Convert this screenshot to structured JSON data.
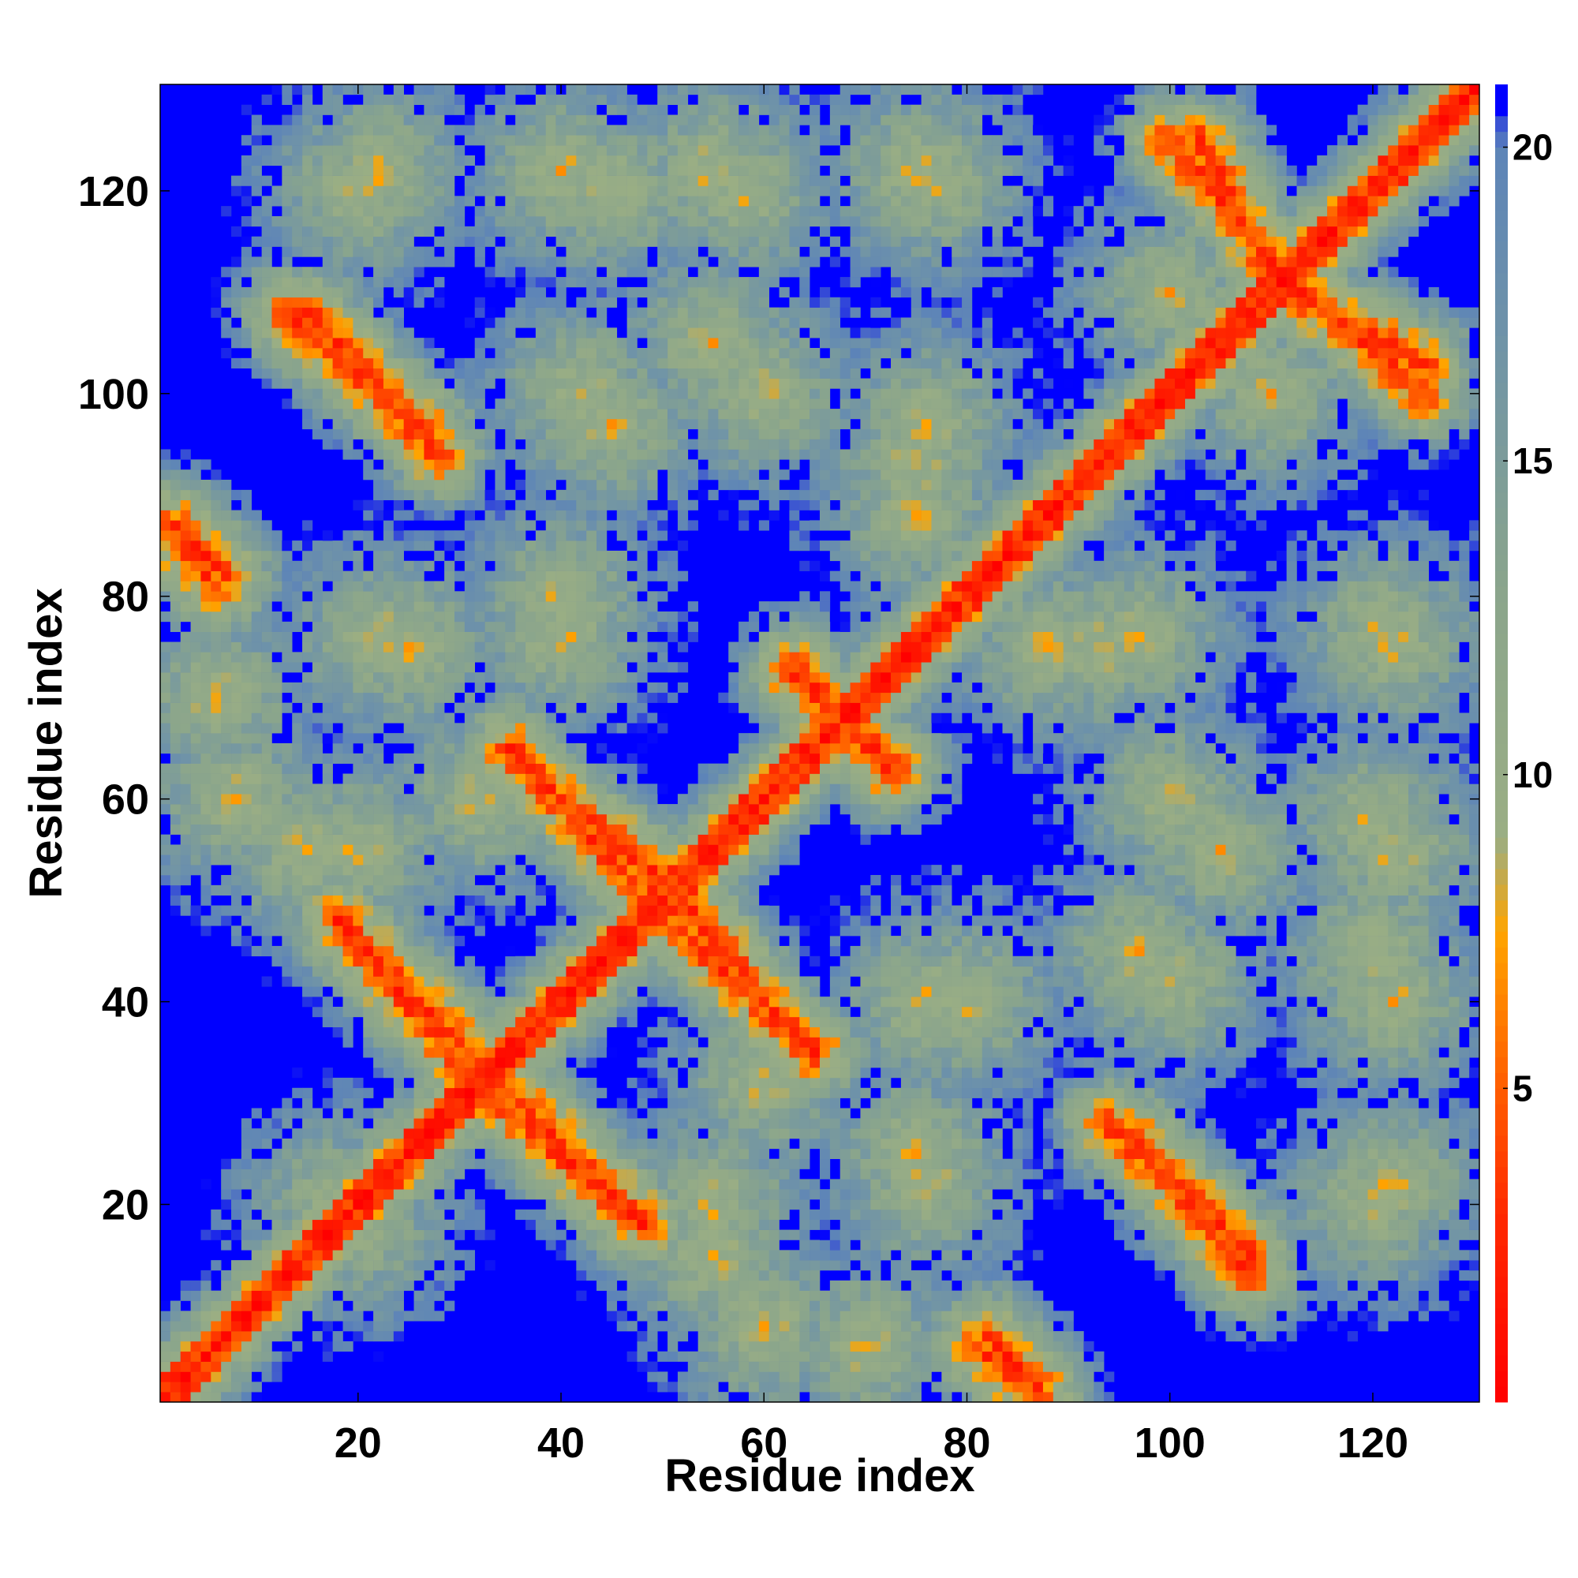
{
  "chart_data": {
    "type": "heatmap",
    "title": "",
    "xlabel": "Residue index",
    "ylabel": "Residue index",
    "n_residues": 130,
    "xlim": [
      1,
      130
    ],
    "ylim": [
      1,
      130
    ],
    "x_ticks": [
      20,
      40,
      60,
      80,
      100,
      120
    ],
    "y_ticks": [
      20,
      40,
      60,
      80,
      100,
      120
    ],
    "colorbar": {
      "range": [
        0,
        21
      ],
      "ticks": [
        5,
        10,
        15,
        20
      ],
      "stops": [
        {
          "value": 0,
          "color": "#ff0000"
        },
        {
          "value": 3,
          "color": "#ff2a00"
        },
        {
          "value": 5.5,
          "color": "#ff6a00"
        },
        {
          "value": 7.5,
          "color": "#ffa500"
        },
        {
          "value": 9,
          "color": "#9aae84"
        },
        {
          "value": 13,
          "color": "#8aa58c"
        },
        {
          "value": 17,
          "color": "#6f93a8"
        },
        {
          "value": 20,
          "color": "#5d84b8"
        },
        {
          "value": 21,
          "color": "#0000ff"
        }
      ]
    },
    "distance_cutoff": 21,
    "background_color": "#0000ff",
    "contact_bands": [
      {
        "name": "main-diagonal",
        "kind": "parallel",
        "x": [
          1,
          130
        ],
        "y": [
          1,
          130
        ]
      },
      {
        "name": "anti-band-20-40",
        "kind": "anti",
        "x": [
          18,
          33
        ],
        "y": [
          48,
          33
        ]
      },
      {
        "name": "anti-band-35-48",
        "kind": "anti",
        "x": [
          34,
          48
        ],
        "y": [
          30,
          18
        ]
      },
      {
        "name": "anti-band-35-50",
        "kind": "anti",
        "x": [
          35,
          50
        ],
        "y": [
          64,
          52
        ]
      },
      {
        "name": "anti-band-52-65",
        "kind": "anti",
        "x": [
          52,
          65
        ],
        "y": [
          47,
          35
        ]
      },
      {
        "name": "anti-band-15-28",
        "kind": "anti",
        "x": [
          15,
          28
        ],
        "y": [
          108,
          94
        ]
      },
      {
        "name": "anti-band-103-110",
        "kind": "anti",
        "x": [
          103,
          110
        ],
        "y": [
          125,
          112
        ]
      },
      {
        "name": "anti-band-110-125",
        "kind": "anti",
        "x": [
          110,
          125
        ],
        "y": [
          113,
          100
        ]
      },
      {
        "name": "anti-band-96-108",
        "kind": "anti",
        "x": [
          96,
          108
        ],
        "y": [
          27,
          13
        ]
      },
      {
        "name": "anti-band-1-6",
        "kind": "anti",
        "x": [
          1,
          6
        ],
        "y": [
          87,
          81
        ]
      },
      {
        "name": "anti-band-82-87",
        "kind": "anti",
        "x": [
          82,
          87
        ],
        "y": [
          7,
          2
        ]
      },
      {
        "name": "cross-64-70",
        "kind": "anti",
        "x": [
          63,
          72
        ],
        "y": [
          73,
          63
        ]
      }
    ],
    "contact_clusters": [
      {
        "x": 22,
        "y": 122
      },
      {
        "x": 45,
        "y": 120
      },
      {
        "x": 58,
        "y": 120
      },
      {
        "x": 77,
        "y": 121
      },
      {
        "x": 45,
        "y": 97
      },
      {
        "x": 60,
        "y": 100
      },
      {
        "x": 75,
        "y": 93
      },
      {
        "x": 88,
        "y": 75
      },
      {
        "x": 97,
        "y": 76
      },
      {
        "x": 22,
        "y": 76
      },
      {
        "x": 40,
        "y": 76
      },
      {
        "x": 110,
        "y": 100
      },
      {
        "x": 122,
        "y": 75
      },
      {
        "x": 122,
        "y": 55
      },
      {
        "x": 80,
        "y": 40
      },
      {
        "x": 100,
        "y": 42
      },
      {
        "x": 122,
        "y": 40
      },
      {
        "x": 20,
        "y": 55
      },
      {
        "x": 32,
        "y": 60
      },
      {
        "x": 6,
        "y": 70
      },
      {
        "x": 20,
        "y": 18
      },
      {
        "x": 55,
        "y": 15
      },
      {
        "x": 120,
        "y": 20
      },
      {
        "x": 75,
        "y": 25
      },
      {
        "x": 105,
        "y": 55
      },
      {
        "x": 60,
        "y": 8
      }
    ]
  }
}
